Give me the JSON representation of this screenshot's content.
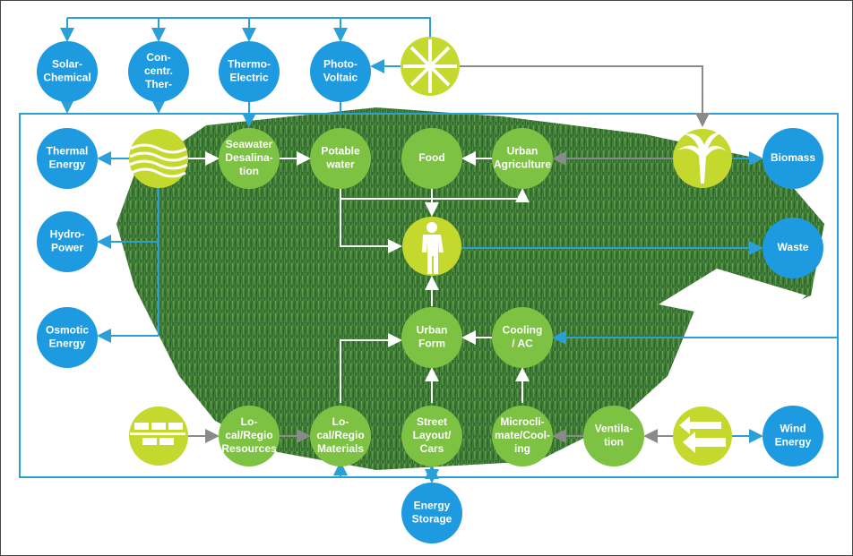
{
  "nodes": [
    {
      "lines": [
        "Solar-",
        "Chemical"
      ]
    },
    {
      "lines": [
        "Con-",
        "centr.",
        "Ther-"
      ]
    },
    {
      "lines": [
        "Thermo-",
        "Electric"
      ]
    },
    {
      "lines": [
        "Photo-",
        "Voltaic"
      ]
    },
    {
      "lines": [
        "Thermal",
        "Energy"
      ]
    },
    {
      "lines": [
        "Seawater",
        "Desalina-",
        "tion"
      ]
    },
    {
      "lines": [
        "Potable",
        "water"
      ]
    },
    {
      "lines": [
        "Food"
      ]
    },
    {
      "lines": [
        "Urban",
        "Agriculture"
      ]
    },
    {
      "lines": [
        "Biomass"
      ]
    },
    {
      "lines": [
        "Hydro-",
        "Power"
      ]
    },
    {
      "lines": [
        "Waste"
      ]
    },
    {
      "lines": [
        "Osmotic",
        "Energy"
      ]
    },
    {
      "lines": [
        "Urban",
        "Form"
      ]
    },
    {
      "lines": [
        "Cooling",
        "/ AC"
      ]
    },
    {
      "lines": [
        "Lo-",
        "cal/Regio",
        "Resources"
      ]
    },
    {
      "lines": [
        "Lo-",
        "cal/Regio",
        "Materials"
      ]
    },
    {
      "lines": [
        "Street",
        "Layout/",
        "Cars"
      ]
    },
    {
      "lines": [
        "Microcli-",
        "mate/Cool-",
        "ing"
      ]
    },
    {
      "lines": [
        "Ventila-",
        "tion"
      ]
    },
    {
      "lines": [
        "Wind",
        "Energy"
      ]
    },
    {
      "lines": [
        "Energy",
        "Storage"
      ]
    }
  ]
}
